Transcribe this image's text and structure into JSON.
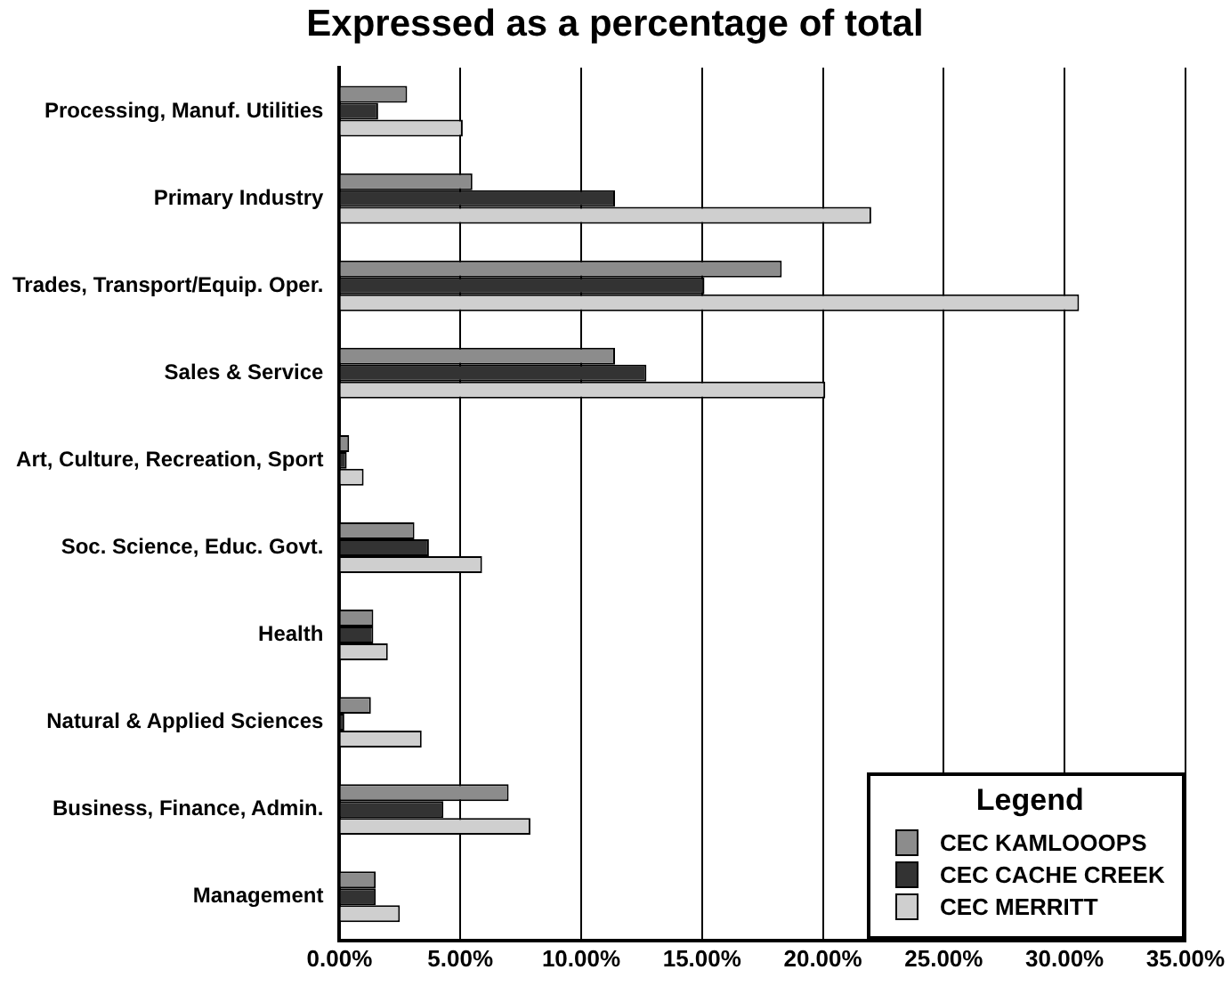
{
  "chart_data": {
    "type": "bar",
    "orientation": "horizontal",
    "title": "Expressed as a percentage of total",
    "categories": [
      "Processing, Manuf. Utilities",
      "Primary Industry",
      "Trades, Transport/Equip. Oper.",
      "Sales & Service",
      "Art, Culture, Recreation, Sport",
      "Soc. Science, Educ. Govt.",
      "Health",
      "Natural & Applied Sciences",
      "Business, Finance, Admin.",
      "Management"
    ],
    "series": [
      {
        "name": "CEC KAMLOOOPS",
        "color": "#8c8c8c",
        "values": [
          2.8,
          5.5,
          18.3,
          11.4,
          0.4,
          3.1,
          1.4,
          1.3,
          7.0,
          1.5
        ]
      },
      {
        "name": "CEC CACHE CREEK",
        "color": "#333333",
        "values": [
          1.6,
          11.4,
          15.1,
          12.7,
          0.3,
          3.7,
          1.4,
          0.2,
          4.3,
          1.5
        ]
      },
      {
        "name": "CEC MERRITT",
        "color": "#cfcfcf",
        "values": [
          5.1,
          22.0,
          30.6,
          20.1,
          1.0,
          5.9,
          2.0,
          3.4,
          7.9,
          2.5
        ]
      }
    ],
    "xlim": [
      0,
      35
    ],
    "xticks": [
      {
        "value": 0,
        "label": "0.00%"
      },
      {
        "value": 5,
        "label": "5.00%"
      },
      {
        "value": 10,
        "label": "10.00%"
      },
      {
        "value": 15,
        "label": "15.00%"
      },
      {
        "value": 20,
        "label": "20.00%"
      },
      {
        "value": 25,
        "label": "25.00%"
      },
      {
        "value": 30,
        "label": "30.00%"
      },
      {
        "value": 35,
        "label": "35.00%"
      }
    ],
    "grid": "x",
    "legend": "bottom right",
    "legend_title": "Legend"
  }
}
